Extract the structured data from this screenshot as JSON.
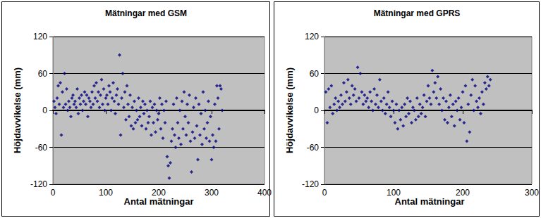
{
  "chart_data": [
    {
      "type": "scatter",
      "title": "Mätningar med GSM",
      "xlabel": "Antal mätningar",
      "ylabel": "Höjdavvikelse (mm)",
      "color": "#000080",
      "marker": "diamond",
      "grid": true,
      "xlim": [
        0,
        400
      ],
      "xticks": [
        0,
        100,
        200,
        300,
        400
      ],
      "ylim": [
        -120,
        120
      ],
      "yticks": [
        -120,
        -60,
        0,
        60,
        120
      ],
      "x": [
        2,
        4,
        6,
        8,
        10,
        12,
        14,
        16,
        18,
        20,
        22,
        24,
        26,
        28,
        30,
        32,
        34,
        36,
        38,
        40,
        42,
        44,
        46,
        48,
        50,
        52,
        54,
        56,
        58,
        60,
        62,
        64,
        66,
        68,
        70,
        72,
        74,
        76,
        78,
        80,
        82,
        84,
        86,
        88,
        90,
        92,
        94,
        96,
        98,
        100,
        102,
        104,
        106,
        108,
        110,
        112,
        114,
        116,
        118,
        120,
        122,
        124,
        126,
        128,
        130,
        132,
        134,
        136,
        138,
        140,
        142,
        144,
        146,
        148,
        150,
        152,
        154,
        156,
        158,
        160,
        162,
        164,
        166,
        168,
        170,
        172,
        174,
        176,
        178,
        180,
        182,
        184,
        186,
        188,
        190,
        192,
        194,
        196,
        198,
        200,
        202,
        204,
        206,
        208,
        210,
        212,
        214,
        216,
        218,
        220,
        222,
        224,
        226,
        228,
        230,
        232,
        234,
        236,
        238,
        240,
        242,
        244,
        246,
        248,
        250,
        252,
        254,
        256,
        258,
        260,
        262,
        264,
        266,
        268,
        270,
        272,
        274,
        276,
        278,
        280,
        282,
        284,
        286,
        288,
        290,
        292,
        294,
        296,
        298,
        300,
        302,
        304,
        306,
        308,
        310,
        312,
        314,
        316,
        318,
        320
      ],
      "values": [
        15,
        5,
        -5,
        20,
        40,
        10,
        45,
        -40,
        30,
        5,
        60,
        10,
        35,
        0,
        15,
        5,
        -10,
        20,
        25,
        10,
        15,
        5,
        35,
        -5,
        20,
        10,
        25,
        0,
        15,
        30,
        10,
        25,
        -10,
        20,
        15,
        5,
        30,
        10,
        40,
        20,
        45,
        15,
        30,
        5,
        25,
        50,
        10,
        35,
        0,
        20,
        25,
        10,
        40,
        30,
        0,
        20,
        45,
        15,
        -5,
        25,
        35,
        10,
        90,
        -40,
        20,
        60,
        5,
        30,
        -15,
        40,
        10,
        -10,
        25,
        -25,
        5,
        -30,
        15,
        -20,
        0,
        -15,
        20,
        -10,
        5,
        -25,
        15,
        -5,
        10,
        -30,
        0,
        -20,
        -10,
        15,
        -40,
        5,
        -20,
        10,
        -35,
        0,
        -15,
        -5,
        20,
        -30,
        10,
        -45,
        0,
        -20,
        15,
        -75,
        -90,
        -110,
        -85,
        -50,
        -30,
        10,
        -40,
        -60,
        20,
        -20,
        -45,
        0,
        -55,
        15,
        -30,
        30,
        -10,
        -40,
        10,
        -20,
        25,
        -50,
        -100,
        -35,
        5,
        -45,
        20,
        -25,
        -80,
        10,
        -40,
        -5,
        -55,
        30,
        -30,
        0,
        -45,
        -20,
        15,
        -50,
        -10,
        -80,
        -40,
        -60,
        10,
        -50,
        40,
        20,
        -30,
        40,
        35,
        0
      ]
    },
    {
      "type": "scatter",
      "title": "Mätningar med GPRS",
      "xlabel": "Antal mätningar",
      "ylabel": "Höjdavvikelse (mm)",
      "color": "#000080",
      "marker": "diamond",
      "grid": true,
      "xlim": [
        0,
        300
      ],
      "xticks": [
        0,
        100,
        200,
        300
      ],
      "ylim": [
        -120,
        120
      ],
      "yticks": [
        -120,
        -60,
        0,
        60,
        120
      ],
      "x": [
        2,
        4,
        6,
        8,
        10,
        12,
        14,
        16,
        18,
        20,
        22,
        24,
        26,
        28,
        30,
        32,
        34,
        36,
        38,
        40,
        42,
        44,
        46,
        48,
        50,
        52,
        54,
        56,
        58,
        60,
        62,
        64,
        66,
        68,
        70,
        72,
        74,
        76,
        78,
        80,
        82,
        84,
        86,
        88,
        90,
        92,
        94,
        96,
        98,
        100,
        102,
        104,
        106,
        108,
        110,
        112,
        114,
        116,
        118,
        120,
        122,
        124,
        126,
        128,
        130,
        132,
        134,
        136,
        138,
        140,
        142,
        144,
        146,
        148,
        150,
        152,
        154,
        156,
        158,
        160,
        162,
        164,
        166,
        168,
        170,
        172,
        174,
        176,
        178,
        180,
        182,
        184,
        186,
        188,
        190,
        192,
        194,
        196,
        198,
        200,
        202,
        204,
        206,
        208,
        210,
        212,
        214,
        216,
        218,
        220,
        222,
        224,
        226,
        228,
        230,
        232,
        234,
        236,
        238,
        240
      ],
      "values": [
        30,
        -20,
        35,
        5,
        40,
        -5,
        10,
        20,
        0,
        15,
        5,
        25,
        10,
        45,
        15,
        30,
        50,
        20,
        10,
        40,
        25,
        35,
        15,
        70,
        20,
        60,
        30,
        10,
        25,
        15,
        20,
        5,
        30,
        15,
        0,
        35,
        10,
        25,
        5,
        50,
        15,
        0,
        20,
        -5,
        10,
        30,
        5,
        -10,
        15,
        0,
        -20,
        10,
        -30,
        0,
        -15,
        5,
        -25,
        10,
        -10,
        20,
        -5,
        15,
        -20,
        5,
        0,
        -15,
        20,
        -10,
        10,
        -5,
        5,
        25,
        -10,
        15,
        40,
        20,
        10,
        65,
        30,
        45,
        20,
        55,
        10,
        35,
        0,
        20,
        -15,
        15,
        -20,
        5,
        25,
        -10,
        10,
        -25,
        15,
        0,
        20,
        -15,
        5,
        30,
        -20,
        40,
        -50,
        10,
        -35,
        25,
        50,
        0,
        40,
        15,
        5,
        20,
        -5,
        30,
        10,
        45,
        35,
        55,
        40,
        50
      ]
    }
  ]
}
